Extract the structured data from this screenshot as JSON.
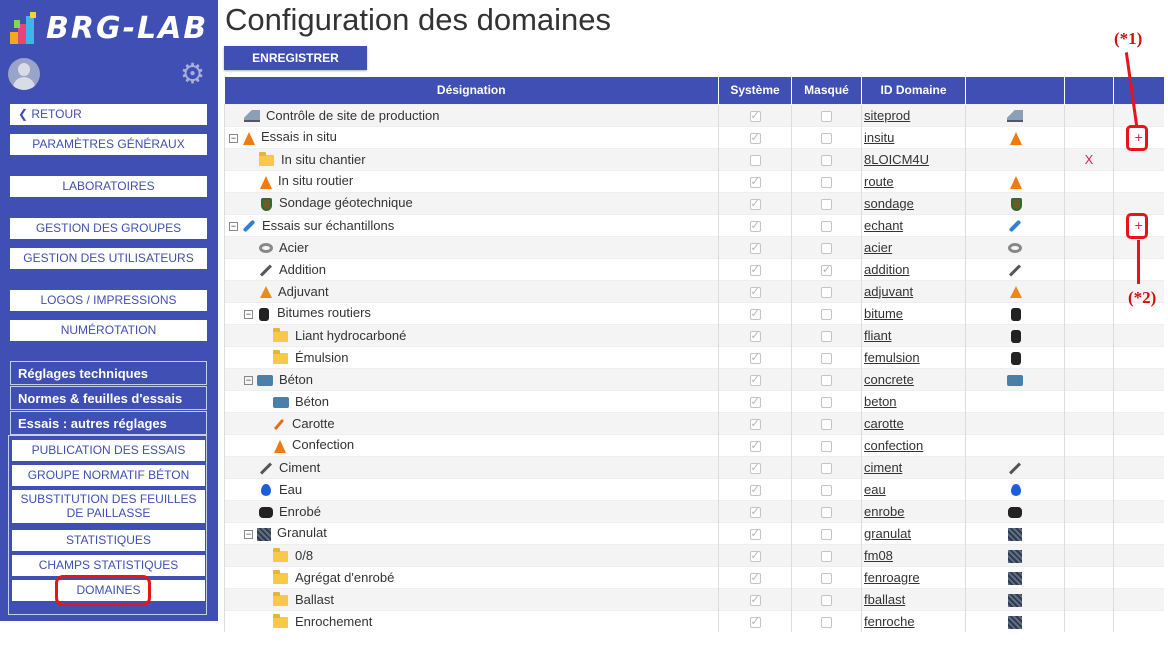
{
  "app": {
    "logo_text": "BRG-LAB"
  },
  "sidebar": {
    "retour": "RETOUR",
    "buttons": {
      "parametres": "PARAMÈTRES GÉNÉRAUX",
      "laboratoires": "LABORATOIRES",
      "groupes": "GESTION DES GROUPES",
      "utilisateurs": "GESTION DES UTILISATEURS",
      "logos": "LOGOS / IMPRESSIONS",
      "numerotation": "NUMÉROTATION"
    },
    "groups": {
      "reglages": "Réglages techniques",
      "normes": "Normes & feuilles d'essais",
      "essais": "Essais : autres réglages"
    },
    "sub": {
      "publication": "PUBLICATION DES ESSAIS",
      "groupe_normatif": "GROUPE NORMATIF BÉTON",
      "substitution": "SUBSTITUTION DES FEUILLES DE PAILLASSE",
      "statistiques": "STATISTIQUES",
      "champs": "CHAMPS STATISTIQUES",
      "domaines": "DOMAINES"
    }
  },
  "main": {
    "title": "Configuration des domaines",
    "save_label": "ENREGISTRER",
    "columns": {
      "designation": "Désignation",
      "systeme": "Système",
      "masque": "Masqué",
      "id": "ID Domaine",
      "icon": "",
      "del": "",
      "add": ""
    },
    "rows": [
      {
        "label": "Contrôle de site de production",
        "id": "siteprod"
      },
      {
        "label": "Essais in situ",
        "id": "insitu",
        "add": "+"
      },
      {
        "label": "In situ chantier",
        "id": "8LOICM4U",
        "del": "X"
      },
      {
        "label": "In situ routier",
        "id": "route"
      },
      {
        "label": "Sondage géotechnique",
        "id": "sondage"
      },
      {
        "label": "Essais sur échantillons",
        "id": "echant",
        "add": "+"
      },
      {
        "label": "Acier",
        "id": "acier"
      },
      {
        "label": "Addition",
        "id": "addition"
      },
      {
        "label": "Adjuvant",
        "id": "adjuvant"
      },
      {
        "label": "Bitumes routiers",
        "id": "bitume"
      },
      {
        "label": "Liant hydrocarboné",
        "id": "fliant"
      },
      {
        "label": "Émulsion",
        "id": "femulsion"
      },
      {
        "label": "Béton",
        "id": "concrete"
      },
      {
        "label": "Béton",
        "id": "beton"
      },
      {
        "label": "Carotte",
        "id": "carotte"
      },
      {
        "label": "Confection",
        "id": "confection"
      },
      {
        "label": "Ciment",
        "id": "ciment"
      },
      {
        "label": "Eau",
        "id": "eau"
      },
      {
        "label": "Enrobé",
        "id": "enrobe"
      },
      {
        "label": "Granulat",
        "id": "granulat"
      },
      {
        "label": "0/8",
        "id": "fm08"
      },
      {
        "label": "Agrégat d'enrobé",
        "id": "fenroagre"
      },
      {
        "label": "Ballast",
        "id": "fballast"
      },
      {
        "label": "Enrochement",
        "id": "fenroche"
      }
    ]
  },
  "annotations": {
    "a1": "(*1)",
    "a2": "(*2)"
  },
  "colors": {
    "primary": "#3f4fb3",
    "annotation": "#e8141c",
    "action": "#e01f50"
  }
}
